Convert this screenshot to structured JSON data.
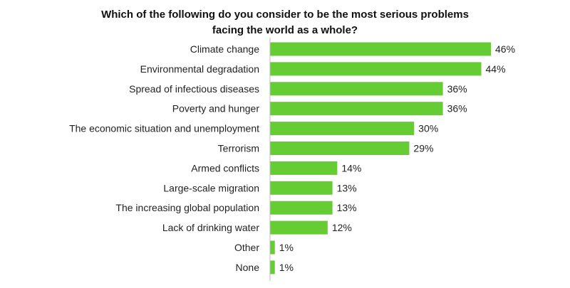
{
  "chart_data": {
    "type": "bar",
    "orientation": "horizontal",
    "title_line1": "Which of the following do you consider to be the most serious problems",
    "title_line2": "facing the world as a whole?",
    "xlabel": "",
    "ylabel": "",
    "value_suffix": "%",
    "xlim": [
      0,
      46
    ],
    "grid": false,
    "bar_color": "#66cc33",
    "axis_color": "#bbbbbb",
    "categories": [
      "Climate change",
      "Environmental degradation",
      "Spread of infectious diseases",
      "Poverty and hunger",
      "The economic situation and unemployment",
      "Terrorism",
      "Armed conflicts",
      "Large-scale migration",
      "The increasing global population",
      "Lack of drinking water",
      "Other",
      "None"
    ],
    "values": [
      46,
      44,
      36,
      36,
      30,
      29,
      14,
      13,
      13,
      12,
      1,
      1
    ]
  }
}
